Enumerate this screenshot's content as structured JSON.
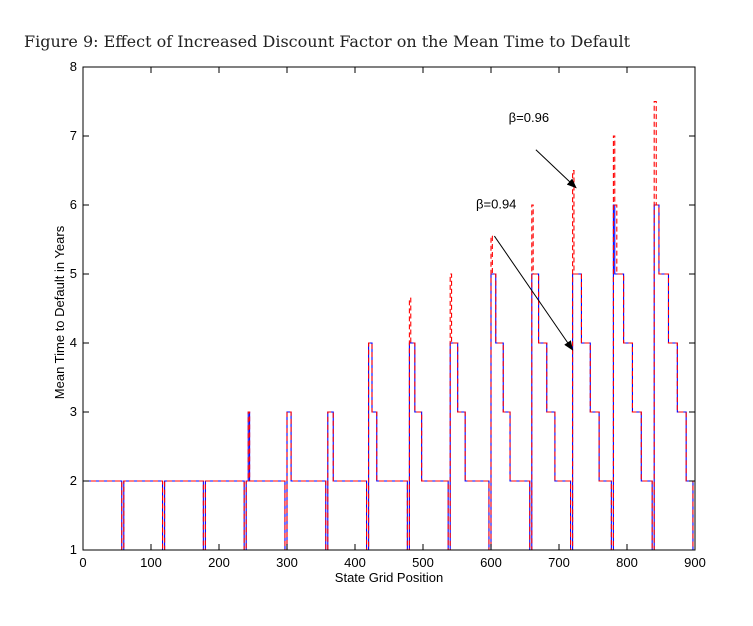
{
  "figure_caption": "Figure 9: Effect of Increased Discount Factor on the Mean Time to Default",
  "chart_data": {
    "type": "line",
    "title": "",
    "xlabel": "State Grid Position",
    "ylabel": "Mean Time to Default in Years",
    "xlim": [
      0,
      900
    ],
    "ylim": [
      1,
      8
    ],
    "xticks": [
      0,
      100,
      200,
      300,
      400,
      500,
      600,
      700,
      800,
      900
    ],
    "yticks": [
      1,
      2,
      3,
      4,
      5,
      6,
      7,
      8
    ],
    "grid": false,
    "series": [
      {
        "name": "β=0.94",
        "color": "#0000ff",
        "style": "solid",
        "points": [
          [
            0,
            2
          ],
          [
            57,
            2
          ],
          [
            57,
            1
          ],
          [
            60,
            1
          ],
          [
            60,
            2
          ],
          [
            117,
            2
          ],
          [
            117,
            1
          ],
          [
            120,
            1
          ],
          [
            120,
            2
          ],
          [
            177,
            2
          ],
          [
            177,
            1
          ],
          [
            180,
            1
          ],
          [
            180,
            2
          ],
          [
            237,
            2
          ],
          [
            237,
            1
          ],
          [
            240,
            1
          ],
          [
            240,
            2
          ],
          [
            243,
            2
          ],
          [
            243,
            3
          ],
          [
            245,
            3
          ],
          [
            245,
            2
          ],
          [
            297,
            2
          ],
          [
            297,
            1
          ],
          [
            300,
            1
          ],
          [
            300,
            3
          ],
          [
            306,
            3
          ],
          [
            306,
            2
          ],
          [
            357,
            2
          ],
          [
            357,
            1
          ],
          [
            360,
            1
          ],
          [
            360,
            3
          ],
          [
            368,
            3
          ],
          [
            368,
            2
          ],
          [
            417,
            2
          ],
          [
            417,
            1
          ],
          [
            420,
            1
          ],
          [
            420,
            4
          ],
          [
            425,
            4
          ],
          [
            425,
            3
          ],
          [
            432,
            3
          ],
          [
            432,
            2
          ],
          [
            477,
            2
          ],
          [
            477,
            1
          ],
          [
            480,
            1
          ],
          [
            480,
            4
          ],
          [
            488,
            4
          ],
          [
            488,
            3
          ],
          [
            498,
            3
          ],
          [
            498,
            2
          ],
          [
            537,
            2
          ],
          [
            537,
            1
          ],
          [
            540,
            1
          ],
          [
            540,
            4
          ],
          [
            551,
            4
          ],
          [
            551,
            3
          ],
          [
            562,
            3
          ],
          [
            562,
            2
          ],
          [
            597,
            2
          ],
          [
            597,
            1
          ],
          [
            600,
            1
          ],
          [
            600,
            5
          ],
          [
            607,
            5
          ],
          [
            607,
            4
          ],
          [
            618,
            4
          ],
          [
            618,
            3
          ],
          [
            628,
            3
          ],
          [
            628,
            2
          ],
          [
            657,
            2
          ],
          [
            657,
            1
          ],
          [
            660,
            1
          ],
          [
            660,
            5
          ],
          [
            670,
            5
          ],
          [
            670,
            4
          ],
          [
            682,
            4
          ],
          [
            682,
            3
          ],
          [
            694,
            3
          ],
          [
            694,
            2
          ],
          [
            717,
            2
          ],
          [
            717,
            1
          ],
          [
            720,
            1
          ],
          [
            720,
            5
          ],
          [
            733,
            5
          ],
          [
            733,
            4
          ],
          [
            746,
            4
          ],
          [
            746,
            3
          ],
          [
            759,
            3
          ],
          [
            759,
            2
          ],
          [
            777,
            2
          ],
          [
            777,
            1
          ],
          [
            780,
            1
          ],
          [
            780,
            6
          ],
          [
            782,
            6
          ],
          [
            782,
            5
          ],
          [
            795,
            5
          ],
          [
            795,
            4
          ],
          [
            808,
            4
          ],
          [
            808,
            3
          ],
          [
            821,
            3
          ],
          [
            821,
            2
          ],
          [
            837,
            2
          ],
          [
            837,
            1
          ],
          [
            840,
            1
          ],
          [
            840,
            6
          ],
          [
            847,
            6
          ],
          [
            847,
            5
          ],
          [
            861,
            5
          ],
          [
            861,
            4
          ],
          [
            874,
            4
          ],
          [
            874,
            3
          ],
          [
            887,
            3
          ],
          [
            887,
            2
          ],
          [
            897,
            2
          ],
          [
            897,
            1
          ],
          [
            900,
            1
          ]
        ]
      },
      {
        "name": "β=0.96",
        "color": "#ff0000",
        "style": "dashed",
        "points": [
          [
            0,
            2
          ],
          [
            57,
            2
          ],
          [
            57,
            1
          ],
          [
            60,
            1
          ],
          [
            60,
            2
          ],
          [
            117,
            2
          ],
          [
            117,
            1
          ],
          [
            120,
            1
          ],
          [
            120,
            2
          ],
          [
            177,
            2
          ],
          [
            177,
            1
          ],
          [
            180,
            1
          ],
          [
            180,
            2
          ],
          [
            237,
            2
          ],
          [
            237,
            1
          ],
          [
            240,
            1
          ],
          [
            240,
            2
          ],
          [
            243,
            2
          ],
          [
            243,
            3
          ],
          [
            245,
            3
          ],
          [
            245,
            2
          ],
          [
            297,
            2
          ],
          [
            297,
            1
          ],
          [
            300,
            1
          ],
          [
            300,
            3
          ],
          [
            306,
            3
          ],
          [
            306,
            2
          ],
          [
            357,
            2
          ],
          [
            357,
            1
          ],
          [
            360,
            1
          ],
          [
            360,
            3
          ],
          [
            368,
            3
          ],
          [
            368,
            2
          ],
          [
            417,
            2
          ],
          [
            417,
            1
          ],
          [
            420,
            1
          ],
          [
            420,
            4
          ],
          [
            425,
            4
          ],
          [
            425,
            3
          ],
          [
            432,
            3
          ],
          [
            432,
            2
          ],
          [
            477,
            2
          ],
          [
            477,
            1
          ],
          [
            480,
            1
          ],
          [
            480,
            4.65
          ],
          [
            482,
            4.65
          ],
          [
            482,
            4
          ],
          [
            488,
            4
          ],
          [
            488,
            3
          ],
          [
            498,
            3
          ],
          [
            498,
            2
          ],
          [
            537,
            2
          ],
          [
            537,
            1
          ],
          [
            540,
            1
          ],
          [
            540,
            5
          ],
          [
            542,
            5
          ],
          [
            542,
            4
          ],
          [
            551,
            4
          ],
          [
            551,
            3
          ],
          [
            562,
            3
          ],
          [
            562,
            2
          ],
          [
            597,
            2
          ],
          [
            597,
            1
          ],
          [
            600,
            1
          ],
          [
            600,
            5.55
          ],
          [
            602,
            5.55
          ],
          [
            602,
            5
          ],
          [
            607,
            5
          ],
          [
            607,
            4
          ],
          [
            618,
            4
          ],
          [
            618,
            3
          ],
          [
            628,
            3
          ],
          [
            628,
            2
          ],
          [
            657,
            2
          ],
          [
            657,
            1
          ],
          [
            660,
            1
          ],
          [
            660,
            6
          ],
          [
            662,
            6
          ],
          [
            662,
            5
          ],
          [
            670,
            5
          ],
          [
            670,
            4
          ],
          [
            682,
            4
          ],
          [
            682,
            3
          ],
          [
            694,
            3
          ],
          [
            694,
            2
          ],
          [
            717,
            2
          ],
          [
            717,
            1
          ],
          [
            720,
            1
          ],
          [
            720,
            6.5
          ],
          [
            722,
            6.5
          ],
          [
            722,
            5
          ],
          [
            733,
            5
          ],
          [
            733,
            4
          ],
          [
            746,
            4
          ],
          [
            746,
            3
          ],
          [
            759,
            3
          ],
          [
            759,
            2
          ],
          [
            777,
            2
          ],
          [
            777,
            1
          ],
          [
            780,
            1
          ],
          [
            780,
            7
          ],
          [
            782,
            7
          ],
          [
            782,
            6
          ],
          [
            785,
            6
          ],
          [
            785,
            5
          ],
          [
            795,
            5
          ],
          [
            795,
            4
          ],
          [
            808,
            4
          ],
          [
            808,
            3
          ],
          [
            821,
            3
          ],
          [
            821,
            2
          ],
          [
            837,
            2
          ],
          [
            837,
            1
          ],
          [
            840,
            1
          ],
          [
            840,
            7.5
          ],
          [
            843,
            7.5
          ],
          [
            843,
            6
          ],
          [
            847,
            6
          ],
          [
            847,
            5
          ],
          [
            861,
            5
          ],
          [
            861,
            4
          ],
          [
            874,
            4
          ],
          [
            874,
            3
          ],
          [
            887,
            3
          ],
          [
            887,
            2
          ],
          [
            897,
            2
          ],
          [
            897,
            1
          ],
          [
            900,
            1
          ]
        ]
      }
    ],
    "annotations": [
      {
        "text": "β=0.96",
        "label_at": [
          626,
          7.2
        ],
        "arrow_from": [
          666,
          6.8
        ],
        "arrow_to": [
          725,
          6.25
        ]
      },
      {
        "text": "β=0.94",
        "label_at": [
          578,
          5.95
        ],
        "arrow_from": [
          605,
          5.55
        ],
        "arrow_to": [
          720,
          3.9
        ]
      }
    ]
  }
}
